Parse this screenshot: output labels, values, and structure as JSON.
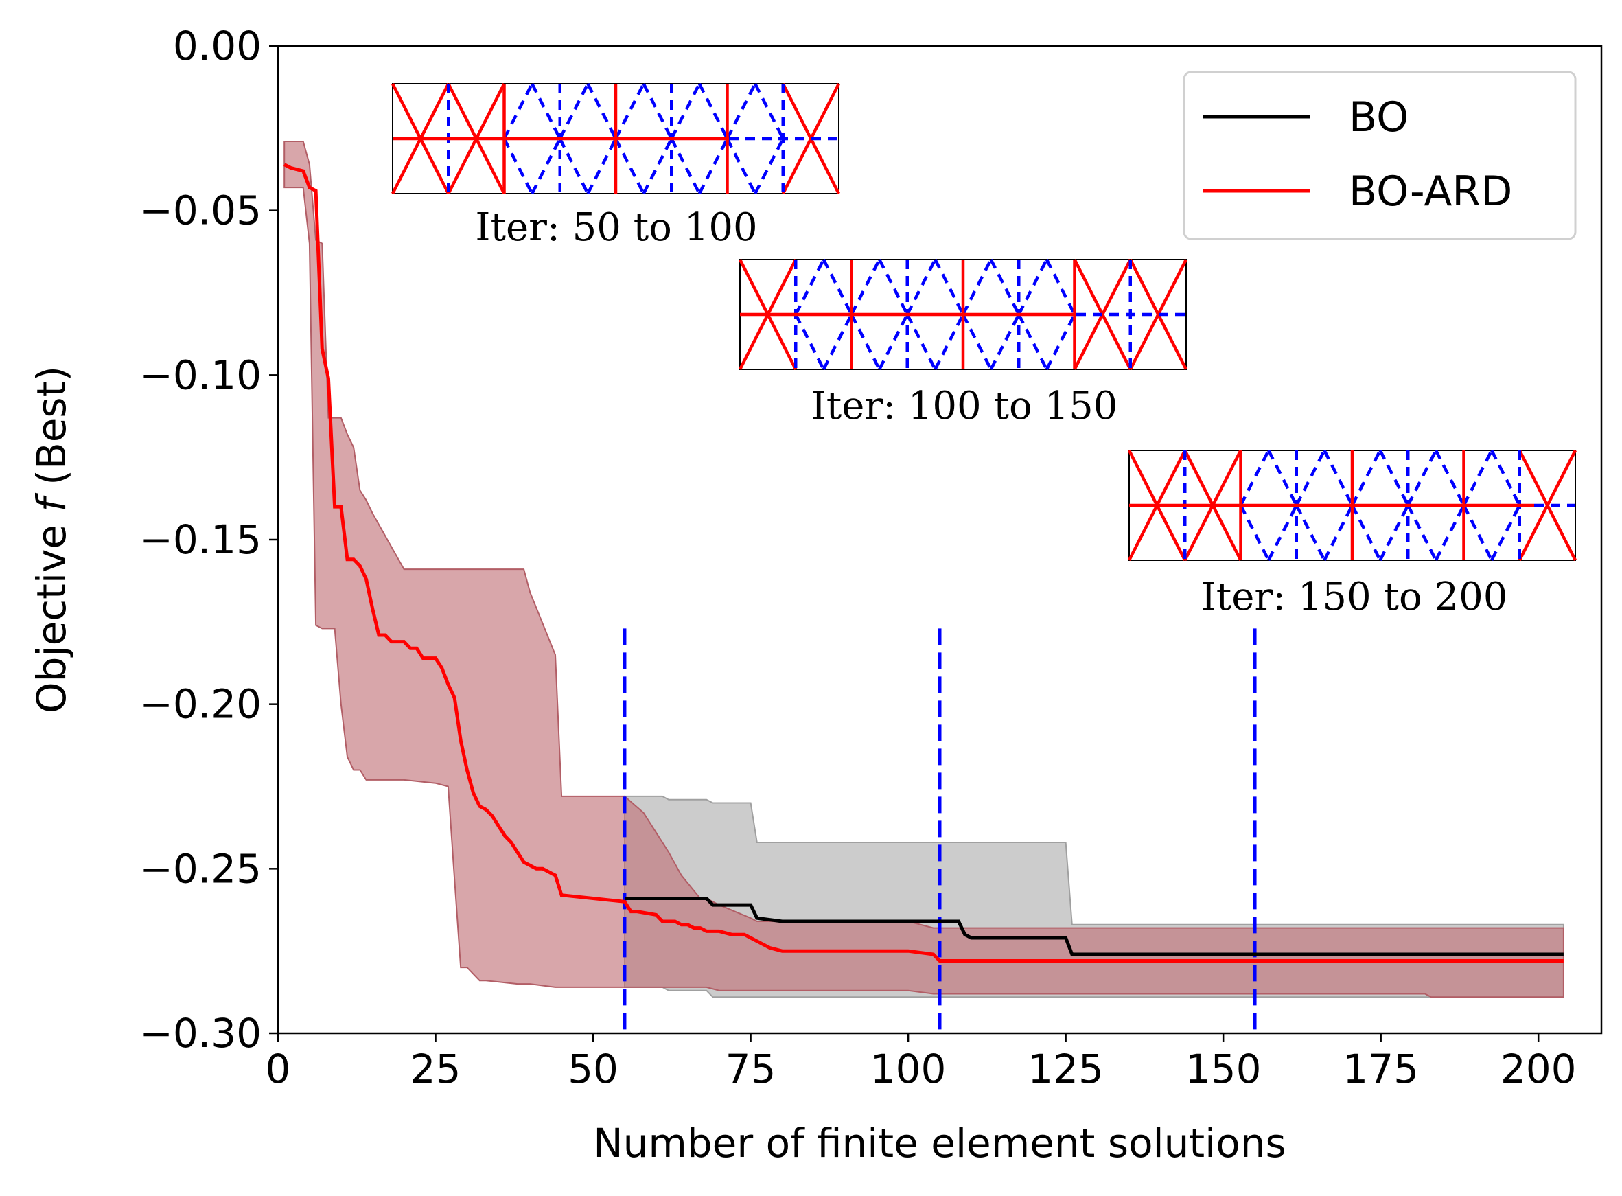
{
  "chart_data": {
    "type": "line",
    "title": "",
    "xlabel": "Number of finite element solutions",
    "ylabel_prefix": "Objective ",
    "ylabel_symbol": "f",
    "ylabel_suffix": " (Best)",
    "xlim": [
      0,
      210
    ],
    "ylim": [
      -0.3,
      0.0
    ],
    "xticks": [
      0,
      25,
      50,
      75,
      100,
      125,
      150,
      175,
      200
    ],
    "xtick_labels": [
      "0",
      "25",
      "50",
      "75",
      "100",
      "125",
      "150",
      "175",
      "200"
    ],
    "yticks": [
      0.0,
      -0.05,
      -0.1,
      -0.15,
      -0.2,
      -0.25,
      -0.3
    ],
    "ytick_labels": [
      "0.00",
      "−0.05",
      "−0.10",
      "−0.15",
      "−0.20",
      "−0.25",
      "−0.30"
    ],
    "legend_position": "top-right",
    "grid": false,
    "series": [
      {
        "name": "BO",
        "color": "#000000",
        "x": [
          55,
          62,
          63,
          68,
          69,
          75,
          76,
          80,
          90,
          100,
          108,
          109,
          110,
          125,
          126,
          130,
          204
        ],
        "y": [
          -0.259,
          -0.259,
          -0.259,
          -0.259,
          -0.261,
          -0.261,
          -0.265,
          -0.266,
          -0.266,
          -0.266,
          -0.266,
          -0.27,
          -0.271,
          -0.271,
          -0.276,
          -0.276,
          -0.276
        ],
        "band_x": [
          55,
          61,
          62,
          68,
          69,
          75,
          76,
          80,
          125,
          126,
          204
        ],
        "band_upper": [
          -0.228,
          -0.228,
          -0.229,
          -0.229,
          -0.23,
          -0.23,
          -0.242,
          -0.242,
          -0.242,
          -0.267,
          -0.267
        ],
        "band_lower": [
          -0.286,
          -0.286,
          -0.287,
          -0.287,
          -0.289,
          -0.289,
          -0.289,
          -0.289,
          -0.289,
          -0.289,
          -0.289
        ]
      },
      {
        "name": "BO-ARD",
        "color": "#ff0000",
        "band_color": "#c07076",
        "x": [
          1,
          2,
          4,
          5,
          6,
          7,
          8,
          9,
          10,
          11,
          12,
          13,
          14,
          15,
          16,
          17,
          18,
          20,
          21,
          22,
          23,
          24,
          25,
          26,
          27,
          28,
          29,
          30,
          31,
          32,
          33,
          34,
          35,
          36,
          37,
          38,
          39,
          40,
          41,
          42,
          43,
          44,
          45,
          50,
          55,
          56,
          57,
          60,
          61,
          63,
          64,
          65,
          66,
          67,
          68,
          70,
          72,
          74,
          75,
          76,
          77,
          78,
          80,
          82,
          90,
          100,
          104,
          105,
          204
        ],
        "y": [
          -0.036,
          -0.037,
          -0.038,
          -0.043,
          -0.044,
          -0.092,
          -0.101,
          -0.14,
          -0.14,
          -0.156,
          -0.156,
          -0.158,
          -0.162,
          -0.171,
          -0.179,
          -0.179,
          -0.181,
          -0.181,
          -0.183,
          -0.183,
          -0.186,
          -0.186,
          -0.186,
          -0.189,
          -0.194,
          -0.198,
          -0.211,
          -0.22,
          -0.227,
          -0.231,
          -0.232,
          -0.234,
          -0.237,
          -0.24,
          -0.242,
          -0.245,
          -0.248,
          -0.249,
          -0.25,
          -0.25,
          -0.251,
          -0.252,
          -0.258,
          -0.259,
          -0.26,
          -0.263,
          -0.263,
          -0.264,
          -0.266,
          -0.266,
          -0.267,
          -0.267,
          -0.268,
          -0.268,
          -0.269,
          -0.269,
          -0.27,
          -0.27,
          -0.271,
          -0.272,
          -0.273,
          -0.274,
          -0.275,
          -0.275,
          -0.275,
          -0.275,
          -0.276,
          -0.278,
          -0.278
        ],
        "band_x": [
          1,
          4,
          5,
          6,
          7,
          8,
          9,
          10,
          11,
          12,
          13,
          14,
          15,
          20,
          25,
          27,
          28,
          29,
          30,
          31,
          32,
          33,
          38,
          39,
          40,
          44,
          45,
          55,
          58,
          62,
          64,
          67,
          68,
          70,
          75,
          76,
          82,
          100,
          104,
          105,
          182,
          183,
          204
        ],
        "band_upper": [
          -0.029,
          -0.029,
          -0.036,
          -0.059,
          -0.06,
          -0.113,
          -0.113,
          -0.113,
          -0.118,
          -0.122,
          -0.135,
          -0.138,
          -0.142,
          -0.159,
          -0.159,
          -0.159,
          -0.159,
          -0.159,
          -0.159,
          -0.159,
          -0.159,
          -0.159,
          -0.159,
          -0.159,
          -0.166,
          -0.185,
          -0.228,
          -0.228,
          -0.233,
          -0.245,
          -0.252,
          -0.259,
          -0.259,
          -0.261,
          -0.265,
          -0.266,
          -0.266,
          -0.266,
          -0.268,
          -0.268,
          -0.268,
          -0.268,
          -0.268
        ],
        "band_lower": [
          -0.043,
          -0.043,
          -0.06,
          -0.176,
          -0.177,
          -0.177,
          -0.177,
          -0.2,
          -0.216,
          -0.22,
          -0.22,
          -0.223,
          -0.223,
          -0.223,
          -0.224,
          -0.225,
          -0.253,
          -0.28,
          -0.28,
          -0.282,
          -0.284,
          -0.284,
          -0.285,
          -0.285,
          -0.285,
          -0.286,
          -0.286,
          -0.286,
          -0.286,
          -0.286,
          -0.286,
          -0.286,
          -0.286,
          -0.287,
          -0.287,
          -0.287,
          -0.287,
          -0.287,
          -0.288,
          -0.288,
          -0.288,
          -0.289,
          -0.289
        ]
      }
    ],
    "vertical_lines": {
      "x": [
        55,
        105,
        155
      ],
      "y_top": -0.177,
      "color": "#0000ff"
    },
    "insets": [
      {
        "caption": "Iter: 50 to 100",
        "solid_color": "#ff0000",
        "dashed_color": "#0000ff"
      },
      {
        "caption": "Iter: 100 to 150",
        "solid_color": "#ff0000",
        "dashed_color": "#0000ff"
      },
      {
        "caption": "Iter: 150 to 200",
        "solid_color": "#ff0000",
        "dashed_color": "#0000ff"
      }
    ]
  }
}
